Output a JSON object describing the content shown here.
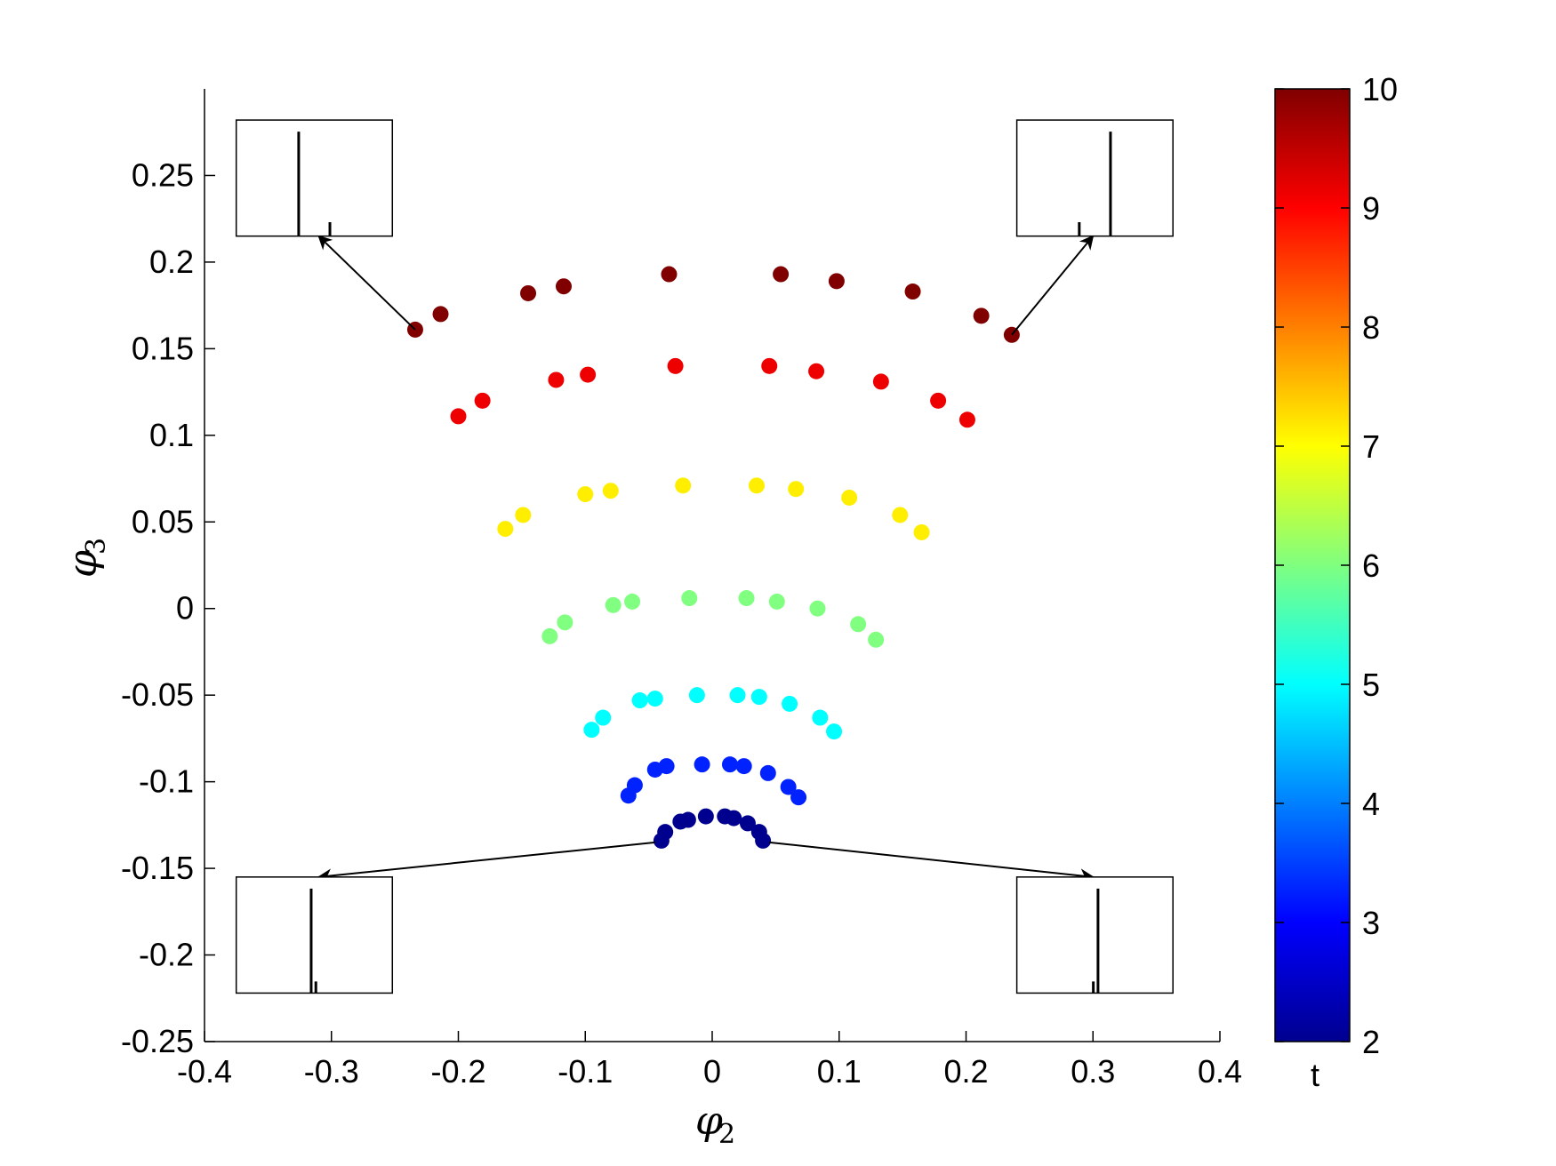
{
  "chart_data": {
    "type": "scatter",
    "xlabel": {
      "symbol": "φ",
      "subscript": "2"
    },
    "ylabel": {
      "symbol": "φ",
      "subscript": "3"
    },
    "xlim": [
      -0.4,
      0.4
    ],
    "ylim": [
      -0.25,
      0.3
    ],
    "xticks": [
      "-0.4",
      "-0.3",
      "-0.2",
      "-0.1",
      "0",
      "0.1",
      "0.2",
      "0.3",
      "0.4"
    ],
    "yticks": [
      "-0.25",
      "-0.2",
      "-0.15",
      "-0.1",
      "-0.05",
      "0",
      "0.05",
      "0.1",
      "0.15",
      "0.2",
      "0.25"
    ],
    "colorbar": {
      "label": "t",
      "range": [
        2,
        10
      ],
      "ticks": [
        "2",
        "3",
        "4",
        "5",
        "6",
        "7",
        "8",
        "9",
        "10"
      ],
      "colormap": "jet"
    },
    "series": [
      {
        "t": 2.0,
        "color": "#00008f",
        "points": [
          [
            -0.04,
            -0.134
          ],
          [
            -0.037,
            -0.129
          ],
          [
            -0.025,
            -0.123
          ],
          [
            -0.019,
            -0.122
          ],
          [
            -0.005,
            -0.12
          ],
          [
            0.01,
            -0.12
          ],
          [
            0.017,
            -0.121
          ],
          [
            0.028,
            -0.124
          ],
          [
            0.037,
            -0.129
          ],
          [
            0.04,
            -0.134
          ]
        ]
      },
      {
        "t": 3.3,
        "color": "#0022ff",
        "points": [
          [
            -0.066,
            -0.108
          ],
          [
            -0.061,
            -0.102
          ],
          [
            -0.045,
            -0.093
          ],
          [
            -0.036,
            -0.091
          ],
          [
            -0.008,
            -0.09
          ],
          [
            0.014,
            -0.09
          ],
          [
            0.025,
            -0.091
          ],
          [
            0.044,
            -0.095
          ],
          [
            0.06,
            -0.103
          ],
          [
            0.068,
            -0.109
          ]
        ]
      },
      {
        "t": 5.0,
        "color": "#00ffff",
        "points": [
          [
            -0.095,
            -0.07
          ],
          [
            -0.086,
            -0.063
          ],
          [
            -0.057,
            -0.053
          ],
          [
            -0.045,
            -0.052
          ],
          [
            -0.012,
            -0.05
          ],
          [
            0.02,
            -0.05
          ],
          [
            0.037,
            -0.051
          ],
          [
            0.061,
            -0.055
          ],
          [
            0.085,
            -0.063
          ],
          [
            0.096,
            -0.071
          ]
        ]
      },
      {
        "t": 6.0,
        "color": "#80ff80",
        "points": [
          [
            -0.128,
            -0.016
          ],
          [
            -0.116,
            -0.008
          ],
          [
            -0.078,
            0.002
          ],
          [
            -0.063,
            0.004
          ],
          [
            -0.018,
            0.006
          ],
          [
            0.027,
            0.006
          ],
          [
            0.051,
            0.004
          ],
          [
            0.083,
            0.0
          ],
          [
            0.115,
            -0.009
          ],
          [
            0.129,
            -0.018
          ]
        ]
      },
      {
        "t": 7.0,
        "color": "#ffee00",
        "points": [
          [
            -0.163,
            0.046
          ],
          [
            -0.149,
            0.054
          ],
          [
            -0.1,
            0.066
          ],
          [
            -0.08,
            0.068
          ],
          [
            -0.023,
            0.071
          ],
          [
            0.035,
            0.071
          ],
          [
            0.066,
            0.069
          ],
          [
            0.108,
            0.064
          ],
          [
            0.148,
            0.054
          ],
          [
            0.165,
            0.044
          ]
        ]
      },
      {
        "t": 9.0,
        "color": "#ee0000",
        "points": [
          [
            -0.2,
            0.111
          ],
          [
            -0.181,
            0.12
          ],
          [
            -0.123,
            0.132
          ],
          [
            -0.098,
            0.135
          ],
          [
            -0.029,
            0.14
          ],
          [
            0.045,
            0.14
          ],
          [
            0.082,
            0.137
          ],
          [
            0.133,
            0.131
          ],
          [
            0.178,
            0.12
          ],
          [
            0.201,
            0.109
          ]
        ]
      },
      {
        "t": 10.0,
        "color": "#800000",
        "points": [
          [
            -0.234,
            0.161
          ],
          [
            -0.214,
            0.17
          ],
          [
            -0.145,
            0.182
          ],
          [
            -0.117,
            0.186
          ],
          [
            -0.034,
            0.193
          ],
          [
            0.054,
            0.193
          ],
          [
            0.098,
            0.189
          ],
          [
            0.158,
            0.183
          ],
          [
            0.212,
            0.169
          ],
          [
            0.236,
            0.158
          ]
        ]
      }
    ],
    "arrows": [
      {
        "from": [
          -0.234,
          0.161
        ],
        "to": [
          -0.31,
          0.215
        ]
      },
      {
        "from": [
          0.236,
          0.158
        ],
        "to": [
          0.3,
          0.215
        ]
      },
      {
        "from": [
          -0.045,
          -0.135
        ],
        "to": [
          -0.31,
          -0.155
        ]
      },
      {
        "from": [
          0.045,
          -0.135
        ],
        "to": [
          0.3,
          -0.155
        ]
      }
    ],
    "insets": [
      {
        "position": "top-left",
        "x_range": [
          -0.375,
          -0.252
        ],
        "y_range": [
          0.282,
          0.215
        ],
        "peaks": [
          {
            "x": 0.4,
            "h": 0.9
          },
          {
            "x": 0.6,
            "h": 0.12
          }
        ]
      },
      {
        "position": "top-right",
        "x_range": [
          0.24,
          0.363
        ],
        "y_range": [
          0.282,
          0.215
        ],
        "peaks": [
          {
            "x": 0.6,
            "h": 0.9
          },
          {
            "x": 0.4,
            "h": 0.12
          }
        ]
      },
      {
        "position": "bottom-left",
        "x_range": [
          -0.375,
          -0.252
        ],
        "y_range": [
          -0.155,
          -0.222
        ],
        "peaks": [
          {
            "x": 0.48,
            "h": 0.9
          },
          {
            "x": 0.51,
            "h": 0.1
          }
        ]
      },
      {
        "position": "bottom-right",
        "x_range": [
          0.24,
          0.363
        ],
        "y_range": [
          -0.155,
          -0.222
        ],
        "peaks": [
          {
            "x": 0.52,
            "h": 0.9
          },
          {
            "x": 0.49,
            "h": 0.1
          }
        ]
      }
    ]
  }
}
